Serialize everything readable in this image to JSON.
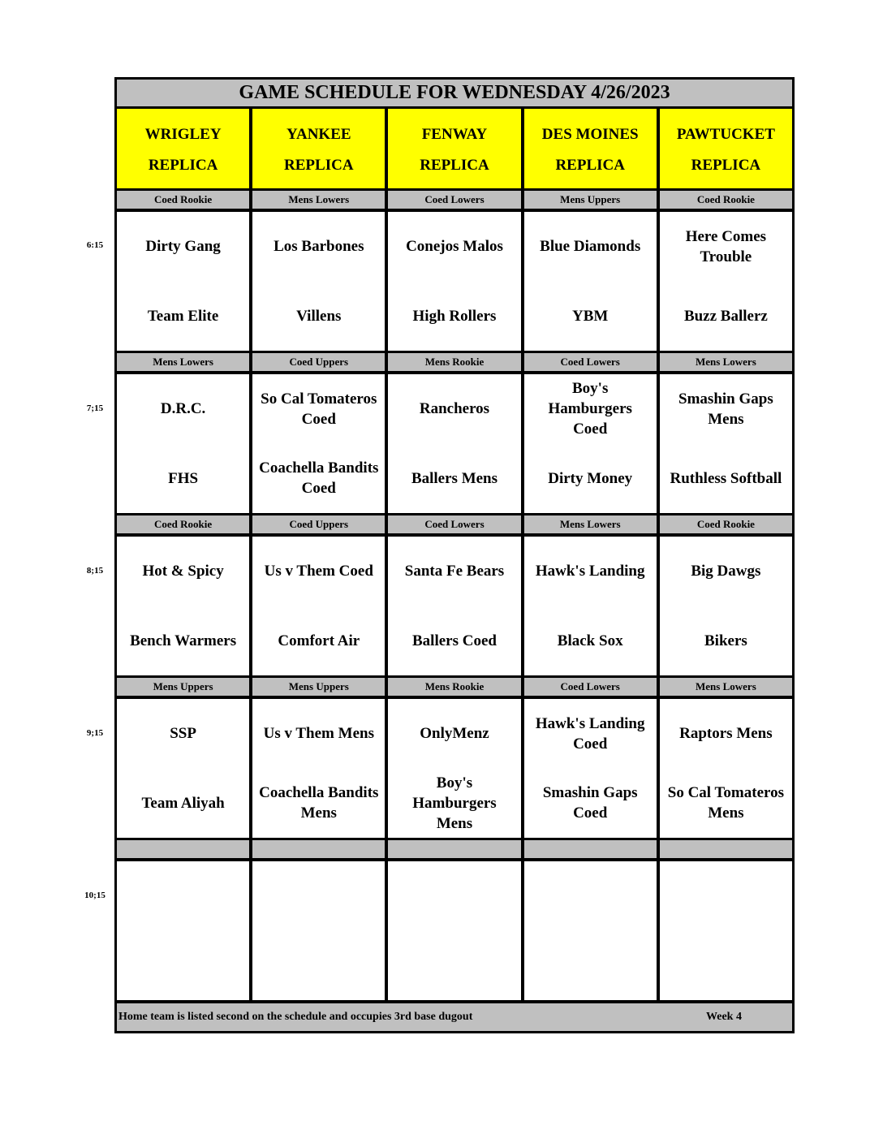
{
  "title": "GAME SCHEDULE FOR WEDNESDAY 4/26/2023",
  "fields": [
    {
      "line1": "WRIGLEY",
      "line2": "REPLICA"
    },
    {
      "line1": "YANKEE",
      "line2": "REPLICA"
    },
    {
      "line1": "FENWAY",
      "line2": "REPLICA"
    },
    {
      "line1": "DES MOINES",
      "line2": "REPLICA"
    },
    {
      "line1": "PAWTUCKET",
      "line2": "REPLICA"
    }
  ],
  "colors": {
    "header_bg": "#ffff00",
    "band_bg": "#c0c0c0",
    "border": "#000000"
  },
  "slots": [
    {
      "time": "6:15",
      "divisions": [
        "Coed Rookie",
        "Mens Lowers",
        "Coed Lowers",
        "Mens Uppers",
        "Coed Rookie"
      ],
      "games": [
        {
          "away": "Dirty Gang",
          "home": "Team Elite"
        },
        {
          "away": "Los Barbones",
          "home": "Villens"
        },
        {
          "away": "Conejos Malos",
          "home": "High Rollers"
        },
        {
          "away": "Blue Diamonds",
          "home": "YBM"
        },
        {
          "away": "Here Comes\nTrouble",
          "home": "Buzz Ballerz"
        }
      ]
    },
    {
      "time": "7;15",
      "divisions": [
        "Mens Lowers",
        "Coed Uppers",
        "Mens Rookie",
        "Coed Lowers",
        "Mens Lowers"
      ],
      "games": [
        {
          "away": "D.R.C.",
          "home": "FHS"
        },
        {
          "away": "So Cal Tomateros\nCoed",
          "home": "Coachella Bandits\nCoed"
        },
        {
          "away": "Rancheros",
          "home": "Ballers Mens"
        },
        {
          "away": "Boy's\nHamburgers\nCoed",
          "home": "Dirty Money"
        },
        {
          "away": "Smashin Gaps\nMens",
          "home": "Ruthless Softball"
        }
      ]
    },
    {
      "time": "8;15",
      "divisions": [
        "Coed Rookie",
        "Coed Uppers",
        "Coed Lowers",
        "Mens Lowers",
        "Coed Rookie"
      ],
      "games": [
        {
          "away": "Hot & Spicy",
          "home": "Bench Warmers"
        },
        {
          "away": "Us v Them Coed",
          "home": "Comfort Air"
        },
        {
          "away": "Santa Fe Bears",
          "home": "Ballers Coed"
        },
        {
          "away": "Hawk's Landing",
          "home": "Black Sox"
        },
        {
          "away": "Big Dawgs",
          "home": "Bikers"
        }
      ]
    },
    {
      "time": "9;15",
      "divisions": [
        "Mens Uppers",
        "Mens Uppers",
        "Mens Rookie",
        "Coed Lowers",
        "Mens Lowers"
      ],
      "games": [
        {
          "away": "SSP",
          "home": "Team Aliyah"
        },
        {
          "away": "Us v Them Mens",
          "home": "Coachella Bandits\nMens"
        },
        {
          "away": "OnlyMenz",
          "home": "Boy's\nHamburgers\nMens"
        },
        {
          "away": "Hawk's Landing\nCoed",
          "home": "Smashin Gaps\nCoed"
        },
        {
          "away": "Raptors Mens",
          "home": "So Cal Tomateros\nMens"
        }
      ]
    },
    {
      "time": "10;15",
      "divisions": [
        "",
        "",
        "",
        "",
        ""
      ],
      "games": [
        {
          "away": "",
          "home": ""
        },
        {
          "away": "",
          "home": ""
        },
        {
          "away": "",
          "home": ""
        },
        {
          "away": "",
          "home": ""
        },
        {
          "away": "",
          "home": ""
        }
      ]
    }
  ],
  "footer": {
    "note": "Home team is listed second on the schedule and occupies 3rd base dugout",
    "week": "Week 4"
  }
}
